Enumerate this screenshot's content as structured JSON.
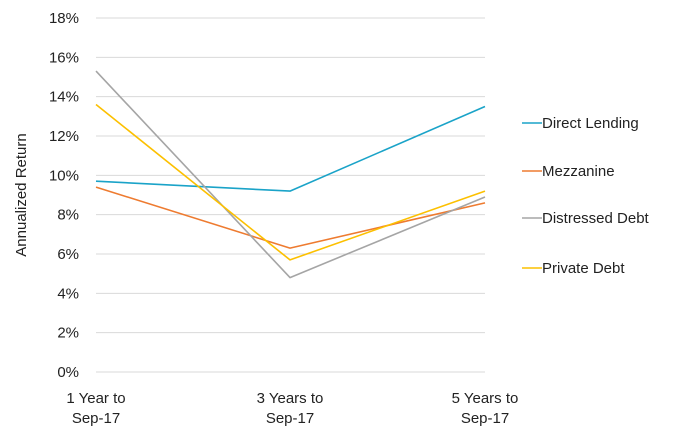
{
  "chart_data": {
    "type": "line",
    "title": "",
    "xlabel": "",
    "ylabel": "Annualized Return",
    "ylim": [
      0,
      18
    ],
    "y_ticks": [
      0,
      2,
      4,
      6,
      8,
      10,
      12,
      14,
      16,
      18
    ],
    "y_tick_labels": [
      "0%",
      "2%",
      "4%",
      "6%",
      "8%",
      "10%",
      "12%",
      "14%",
      "16%",
      "18%"
    ],
    "categories": [
      [
        "1 Year to",
        "Sep-17"
      ],
      [
        "3 Years to",
        "Sep-17"
      ],
      [
        "5 Years to",
        "Sep-17"
      ]
    ],
    "grid": true,
    "legend_position": "right",
    "series": [
      {
        "name": "Direct Lending",
        "color": "#1aa3c8",
        "values": [
          9.7,
          9.2,
          13.5
        ]
      },
      {
        "name": "Mezzanine",
        "color": "#ee7b30",
        "values": [
          9.4,
          6.3,
          8.6
        ]
      },
      {
        "name": "Distressed Debt",
        "color": "#a5a5a5",
        "values": [
          15.3,
          4.8,
          8.9
        ]
      },
      {
        "name": "Private Debt",
        "color": "#fcc000",
        "values": [
          13.6,
          5.7,
          9.2
        ]
      }
    ]
  }
}
